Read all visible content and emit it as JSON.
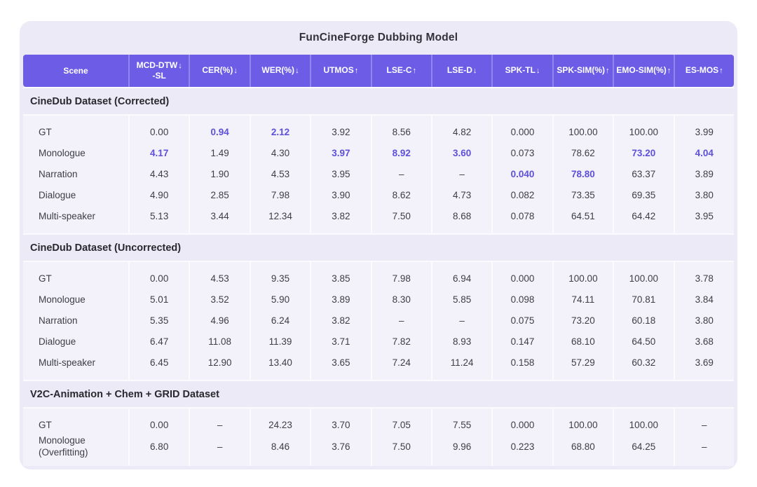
{
  "title": "FunCineForge Dubbing Model",
  "colors": {
    "header_bg": "#6d5de6",
    "header_divider": "#9186ec",
    "card_bg": "#eceaf6",
    "panel_bg": "#f3f2fa",
    "panel_divider": "#fbfbfe",
    "highlight": "#5d50d9",
    "text": "#3d3d47"
  },
  "columns": [
    {
      "label": "Scene",
      "arrow": ""
    },
    {
      "label": "MCD-DTW",
      "label2": "-SL",
      "arrow": "↓"
    },
    {
      "label": "CER(%)",
      "arrow": "↓"
    },
    {
      "label": "WER(%)",
      "arrow": "↓"
    },
    {
      "label": "UTMOS",
      "arrow": "↑"
    },
    {
      "label": "LSE-C",
      "arrow": "↑"
    },
    {
      "label": "LSE-D",
      "arrow": "↓"
    },
    {
      "label": "SPK-TL",
      "arrow": "↓"
    },
    {
      "label": "SPK-SIM(%)",
      "arrow": "↑"
    },
    {
      "label": "EMO-SIM(%)",
      "arrow": "↑"
    },
    {
      "label": "ES-MOS",
      "arrow": "↑"
    }
  ],
  "sections": [
    {
      "title": "CineDub Dataset (Corrected)",
      "rows": [
        {
          "scene": "GT",
          "values": [
            "0.00",
            "0.94",
            "2.12",
            "3.92",
            "8.56",
            "4.82",
            "0.000",
            "100.00",
            "100.00",
            "3.99"
          ],
          "highlight": [
            1,
            2
          ]
        },
        {
          "scene": "Monologue",
          "values": [
            "4.17",
            "1.49",
            "4.30",
            "3.97",
            "8.92",
            "3.60",
            "0.073",
            "78.62",
            "73.20",
            "4.04"
          ],
          "highlight": [
            0,
            3,
            4,
            5,
            8,
            9
          ]
        },
        {
          "scene": "Narration",
          "values": [
            "4.43",
            "1.90",
            "4.53",
            "3.95",
            "–",
            "–",
            "0.040",
            "78.80",
            "63.37",
            "3.89"
          ],
          "highlight": [
            6,
            7
          ]
        },
        {
          "scene": "Dialogue",
          "values": [
            "4.90",
            "2.85",
            "7.98",
            "3.90",
            "8.62",
            "4.73",
            "0.082",
            "73.35",
            "69.35",
            "3.80"
          ],
          "highlight": []
        },
        {
          "scene": "Multi-speaker",
          "values": [
            "5.13",
            "3.44",
            "12.34",
            "3.82",
            "7.50",
            "8.68",
            "0.078",
            "64.51",
            "64.42",
            "3.95"
          ],
          "highlight": []
        }
      ]
    },
    {
      "title": "CineDub Dataset (Uncorrected)",
      "rows": [
        {
          "scene": "GT",
          "values": [
            "0.00",
            "4.53",
            "9.35",
            "3.85",
            "7.98",
            "6.94",
            "0.000",
            "100.00",
            "100.00",
            "3.78"
          ],
          "highlight": []
        },
        {
          "scene": "Monologue",
          "values": [
            "5.01",
            "3.52",
            "5.90",
            "3.89",
            "8.30",
            "5.85",
            "0.098",
            "74.11",
            "70.81",
            "3.84"
          ],
          "highlight": []
        },
        {
          "scene": "Narration",
          "values": [
            "5.35",
            "4.96",
            "6.24",
            "3.82",
            "–",
            "–",
            "0.075",
            "73.20",
            "60.18",
            "3.80"
          ],
          "highlight": []
        },
        {
          "scene": "Dialogue",
          "values": [
            "6.47",
            "11.08",
            "11.39",
            "3.71",
            "7.82",
            "8.93",
            "0.147",
            "68.10",
            "64.50",
            "3.68"
          ],
          "highlight": []
        },
        {
          "scene": "Multi-speaker",
          "values": [
            "6.45",
            "12.90",
            "13.40",
            "3.65",
            "7.24",
            "11.24",
            "0.158",
            "57.29",
            "60.32",
            "3.69"
          ],
          "highlight": []
        }
      ]
    },
    {
      "title": "V2C-Animation + Chem + GRID Dataset",
      "rows": [
        {
          "scene": "GT",
          "values": [
            "0.00",
            "–",
            "24.23",
            "3.70",
            "7.05",
            "7.55",
            "0.000",
            "100.00",
            "100.00",
            "–"
          ],
          "highlight": []
        },
        {
          "scene": "Monologue",
          "scene2": "(Overfitting)",
          "values": [
            "6.80",
            "–",
            "8.46",
            "3.76",
            "7.50",
            "9.96",
            "0.223",
            "68.80",
            "64.25",
            "–"
          ],
          "highlight": []
        }
      ]
    }
  ]
}
